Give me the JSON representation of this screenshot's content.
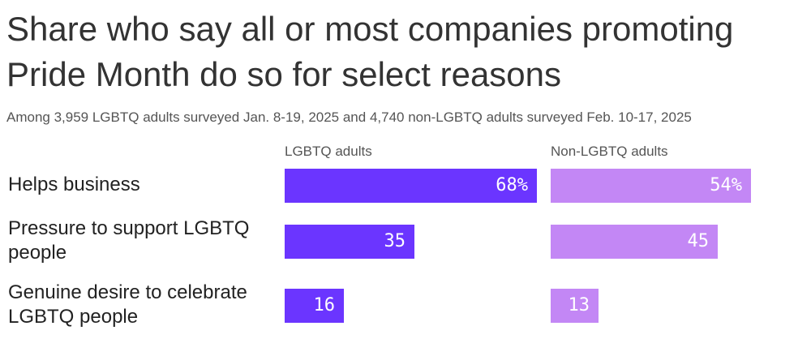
{
  "title": "Share who say all or most companies promoting Pride Month do so for select reasons",
  "subtitle": "Among 3,959 LGBTQ adults surveyed Jan. 8-19, 2025 and 4,740 non-LGBTQ adults surveyed Feb. 10-17, 2025",
  "colors": {
    "lgbtq": "#6b35ff",
    "non_lgbtq": "#c387f5"
  },
  "chart_data": {
    "type": "bar",
    "title": "Share who say all or most companies promoting Pride Month do so for select reasons",
    "subtitle": "Among 3,959 LGBTQ adults surveyed Jan. 8-19, 2025 and 4,740 non-LGBTQ adults surveyed Feb. 10-17, 2025",
    "categories": [
      "Helps business",
      "Pressure to support LGBTQ people",
      "Genuine desire to celebrate LGBTQ people"
    ],
    "series": [
      {
        "name": "LGBTQ adults",
        "values": [
          68,
          35,
          16
        ],
        "labels": [
          "68%",
          "35",
          "16"
        ]
      },
      {
        "name": "Non-LGBTQ adults",
        "values": [
          54,
          45,
          13
        ],
        "labels": [
          "54%",
          "45",
          "13"
        ]
      }
    ],
    "unit": "%",
    "ylim": [
      0,
      68
    ],
    "grid": false,
    "legend": "column headers"
  }
}
